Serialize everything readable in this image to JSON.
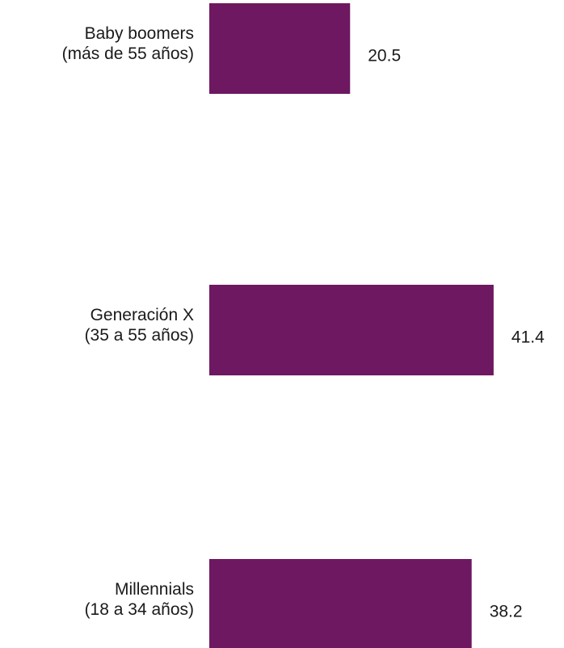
{
  "chart_data": {
    "type": "bar",
    "orientation": "horizontal",
    "categories": [
      [
        "Baby boomers",
        "(más de 55 años)"
      ],
      [
        "Generación X",
        "(35 a 55 años)"
      ],
      [
        "Millennials",
        "(18 a 34 años)"
      ]
    ],
    "values": [
      20.5,
      41.4,
      38.2
    ],
    "value_labels": [
      "20.5",
      "41.4",
      "38.2"
    ],
    "bar_color": "#6e1861",
    "title": "",
    "xlabel": "",
    "ylabel": "",
    "grid": false,
    "legend": "none"
  }
}
